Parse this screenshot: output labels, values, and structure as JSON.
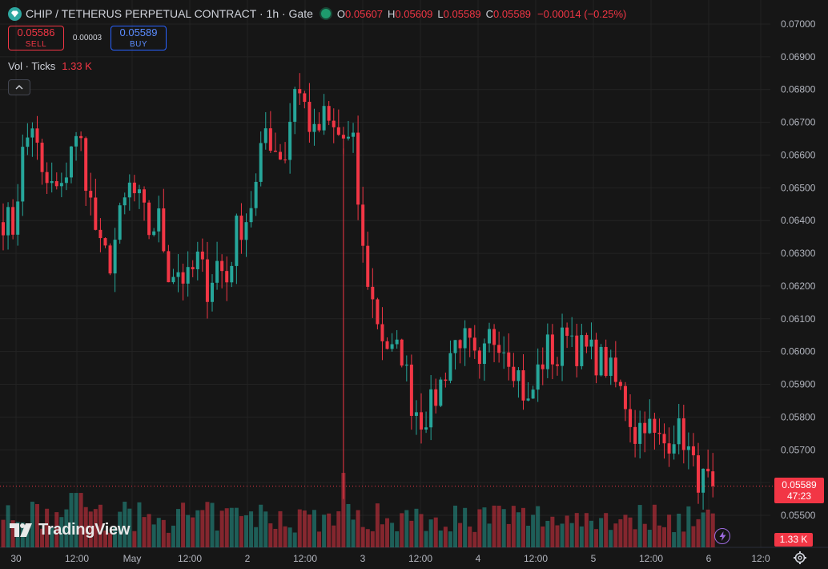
{
  "header": {
    "title": "CHIP / TETHERUS PERPETUAL CONTRACT · 1h · Gate",
    "ohlc": [
      {
        "k": "O",
        "v": "0.05607"
      },
      {
        "k": "H",
        "v": "0.05609"
      },
      {
        "k": "L",
        "v": "0.05589"
      },
      {
        "k": "C",
        "v": "0.05589"
      }
    ],
    "change": "−0.00014 (−0.25%)",
    "logo_icon": "diamond-icon",
    "status_icon": "market-open-dot-icon"
  },
  "trade": {
    "sell_price": "0.05586",
    "sell_label": "SELL",
    "spread": "0.00003",
    "buy_price": "0.05589",
    "buy_label": "BUY"
  },
  "volume_legend": {
    "label": "Vol · Ticks",
    "value": "1.33 K"
  },
  "branding": {
    "name": "TradingView"
  },
  "price_tag": {
    "price": "0.05589",
    "countdown": "47:23"
  },
  "volume_tag": "1.33 K",
  "colors": {
    "up": "#26a69a",
    "down": "#f23645",
    "background": "#161616",
    "grid": "#232323"
  },
  "chart_data": {
    "type": "candlestick",
    "interval": "1h",
    "y_axis_ticks": [
      "0.07000",
      "0.06900",
      "0.06800",
      "0.06700",
      "0.06600",
      "0.06500",
      "0.06400",
      "0.06300",
      "0.06200",
      "0.06100",
      "0.06000",
      "0.05900",
      "0.05800",
      "0.05700",
      "0.05600",
      "0.05500"
    ],
    "ylim": [
      0.0547,
      0.0703
    ],
    "x_axis_ticks": [
      "30",
      "12:00",
      "May",
      "12:00",
      "2",
      "12:00",
      "3",
      "12:00",
      "4",
      "12:00",
      "5",
      "12:00",
      "6",
      "12:0"
    ],
    "last_price": 0.05589,
    "price_anchors": [
      [
        0,
        0.0641
      ],
      [
        2,
        0.0638
      ],
      [
        4,
        0.066
      ],
      [
        6,
        0.067
      ],
      [
        8,
        0.0652
      ],
      [
        10,
        0.065
      ],
      [
        12,
        0.0648
      ],
      [
        14,
        0.0664
      ],
      [
        16,
        0.0663
      ],
      [
        18,
        0.0645
      ],
      [
        20,
        0.063
      ],
      [
        22,
        0.0628
      ],
      [
        24,
        0.064
      ],
      [
        26,
        0.065
      ],
      [
        28,
        0.0645
      ],
      [
        30,
        0.0637
      ],
      [
        32,
        0.064
      ],
      [
        34,
        0.0625
      ],
      [
        36,
        0.0625
      ],
      [
        38,
        0.0621
      ],
      [
        40,
        0.0628
      ],
      [
        42,
        0.062
      ],
      [
        44,
        0.0627
      ],
      [
        46,
        0.0622
      ],
      [
        48,
        0.0637
      ],
      [
        50,
        0.0641
      ],
      [
        52,
        0.065
      ],
      [
        54,
        0.0668
      ],
      [
        56,
        0.0662
      ],
      [
        58,
        0.066
      ],
      [
        60,
        0.0682
      ],
      [
        62,
        0.0675
      ],
      [
        64,
        0.0665
      ],
      [
        66,
        0.0671
      ],
      [
        68,
        0.0667
      ],
      [
        70,
        0.0665
      ],
      [
        72,
        0.0662
      ],
      [
        74,
        0.063
      ],
      [
        76,
        0.0615
      ],
      [
        78,
        0.0605
      ],
      [
        80,
        0.0599
      ],
      [
        82,
        0.06
      ],
      [
        84,
        0.0585
      ],
      [
        86,
        0.058
      ],
      [
        88,
        0.0583
      ],
      [
        90,
        0.059
      ],
      [
        92,
        0.06
      ],
      [
        94,
        0.0605
      ],
      [
        96,
        0.06
      ],
      [
        98,
        0.0592
      ],
      [
        100,
        0.0604
      ],
      [
        102,
        0.0605
      ],
      [
        104,
        0.06
      ],
      [
        106,
        0.0593
      ],
      [
        108,
        0.0583
      ],
      [
        110,
        0.0594
      ],
      [
        112,
        0.0601
      ],
      [
        114,
        0.0597
      ],
      [
        116,
        0.0609
      ],
      [
        118,
        0.0601
      ],
      [
        120,
        0.06
      ],
      [
        122,
        0.0598
      ],
      [
        124,
        0.0596
      ],
      [
        126,
        0.059
      ],
      [
        128,
        0.0585
      ],
      [
        130,
        0.0575
      ],
      [
        132,
        0.058
      ],
      [
        134,
        0.0573
      ],
      [
        136,
        0.0572
      ],
      [
        138,
        0.0576
      ],
      [
        140,
        0.0574
      ],
      [
        142,
        0.0564
      ],
      [
        144,
        0.056
      ],
      [
        146,
        0.05589
      ]
    ],
    "volume_scale_note": "volume bars drawn relative to max visible",
    "y_axis_position": "right"
  }
}
